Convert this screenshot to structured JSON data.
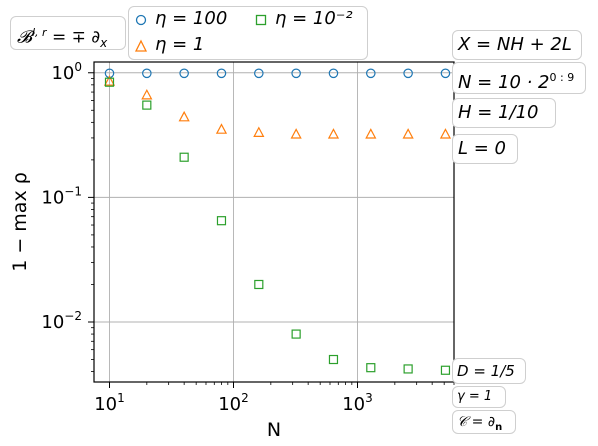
{
  "chart_data": {
    "type": "scatter",
    "xscale": "log",
    "yscale": "log",
    "xlim": [
      7.5,
      6000
    ],
    "ylim": [
      0.0033,
      1.22
    ],
    "xlabel": "N",
    "ylabel": "1 − max ρ",
    "grid": true,
    "xticks": [
      {
        "value": 10,
        "base": "10",
        "exp": "1"
      },
      {
        "value": 100,
        "base": "10",
        "exp": "2"
      },
      {
        "value": 1000,
        "base": "10",
        "exp": "3"
      }
    ],
    "yticks": [
      {
        "value": 1,
        "base": "10",
        "exp": "0"
      },
      {
        "value": 0.1,
        "base": "10",
        "exp": "−1"
      },
      {
        "value": 0.01,
        "base": "10",
        "exp": "−2"
      }
    ],
    "x": [
      10,
      20,
      40,
      80,
      160,
      320,
      640,
      1280,
      2560,
      5120
    ],
    "series": [
      {
        "name": "η = 100",
        "marker": "circle",
        "color": "#1f77b4",
        "values": [
          0.99,
          0.99,
          0.99,
          0.99,
          0.99,
          0.99,
          0.99,
          0.99,
          0.99,
          0.99
        ]
      },
      {
        "name": "η = 1",
        "marker": "triangle",
        "color": "#ff7f0e",
        "values": [
          0.85,
          0.66,
          0.44,
          0.35,
          0.33,
          0.32,
          0.32,
          0.32,
          0.32,
          0.32
        ]
      },
      {
        "name": "η = 10⁻²",
        "marker": "square",
        "color": "#2ca02c",
        "values": [
          0.84,
          0.55,
          0.21,
          0.065,
          0.02,
          0.008,
          0.005,
          0.0043,
          0.0042,
          0.0041
        ]
      }
    ],
    "legend": {
      "placement": "top",
      "columns": 2
    },
    "annotations": {
      "top_left": {
        "b": "𝓑",
        "sup": "l, r",
        "rest": " = ∓ ∂",
        "sub": "x"
      },
      "X": "X = NH + 2L",
      "N": {
        "base": "N = 10 · 2",
        "sup": "0 : 9"
      },
      "H": "H = 1/10",
      "L": "L = 0",
      "D": "D = 1/5",
      "gamma": "γ = 1",
      "C": {
        "lhs": "𝒞 = ∂",
        "sub": "n"
      }
    }
  }
}
